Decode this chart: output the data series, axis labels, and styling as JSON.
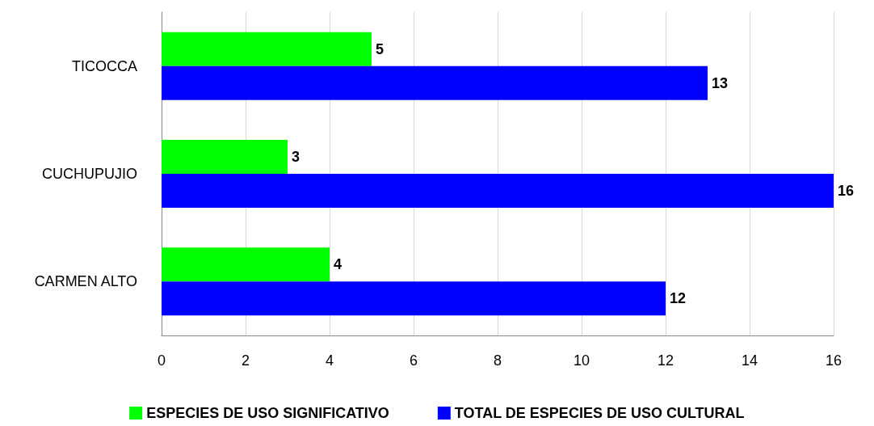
{
  "chart_data": {
    "type": "bar",
    "orientation": "horizontal",
    "categories": [
      "TICOCCA",
      "CUCHUPUJIO",
      "CARMEN ALTO"
    ],
    "series": [
      {
        "name": "ESPECIES DE USO SIGNIFICATIVO",
        "color": "#00ff00",
        "values": [
          5,
          3,
          4
        ]
      },
      {
        "name": "TOTAL DE ESPECIES DE USO CULTURAL",
        "color": "#0000ff",
        "values": [
          13,
          16,
          12
        ]
      }
    ],
    "xlim": [
      0,
      16
    ],
    "xticks": [
      0,
      2,
      4,
      6,
      8,
      10,
      12,
      14,
      16
    ],
    "grid": "x",
    "legend": "bottom",
    "data_labels": true
  }
}
